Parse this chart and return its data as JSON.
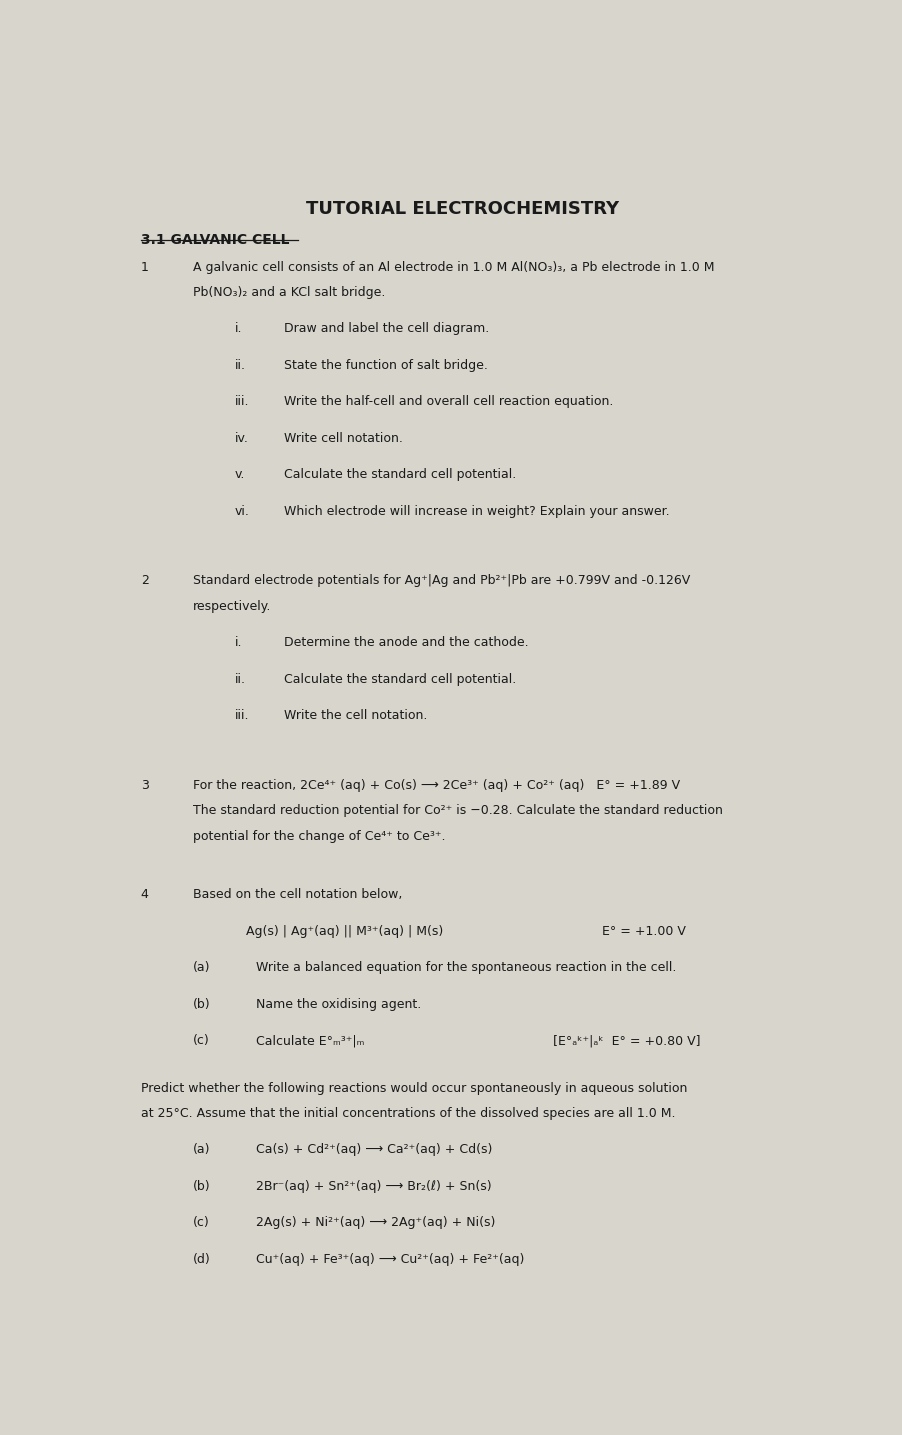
{
  "title": "TUTORIAL ELECTROCHEMISTRY",
  "subtitle": "3.1 GALVANIC CELL",
  "background_color": "#d8d5cc",
  "text_color": "#1a1a1a",
  "font_size_title": 13,
  "font_size_subtitle": 10,
  "font_size_body": 9,
  "sections": [
    {
      "number": "1",
      "intro_line1": "A galvanic cell consists of an Al electrode in 1.0 M Al(NO₃)₃, a Pb electrode in 1.0 M",
      "intro_line2": "Pb(NO₃)₂ and a KCl salt bridge.",
      "items": [
        {
          "label": "i.",
          "text": "Draw and label the cell diagram."
        },
        {
          "label": "ii.",
          "text": "State the function of salt bridge."
        },
        {
          "label": "iii.",
          "text": "Write the half-cell and overall cell reaction equation."
        },
        {
          "label": "iv.",
          "text": "Write cell notation."
        },
        {
          "label": "v.",
          "text": "Calculate the standard cell potential."
        },
        {
          "label": "vi.",
          "text": "Which electrode will increase in weight? Explain your answer."
        }
      ]
    },
    {
      "number": "2",
      "intro_line1": "Standard electrode potentials for Ag⁺|Ag and Pb²⁺|Pb are +0.799V and -0.126V",
      "intro_line2": "respectively.",
      "items": [
        {
          "label": "i.",
          "text": "Determine the anode and the cathode."
        },
        {
          "label": "ii.",
          "text": "Calculate the standard cell potential."
        },
        {
          "label": "iii.",
          "text": "Write the cell notation."
        }
      ]
    },
    {
      "number": "3",
      "intro_line1": "For the reaction, 2Ce⁴⁺ (aq) + Co(s) ⟶ 2Ce³⁺ (aq) + Co²⁺ (aq)   E° = +1.89 V",
      "intro_line2": "The standard reduction potential for Co²⁺ is −0.28. Calculate the standard reduction",
      "intro_line3": "potential for the change of Ce⁴⁺ to Ce³⁺.",
      "items": []
    },
    {
      "number": "4",
      "intro": "Based on the cell notation below,",
      "cell_notation": "Ag(s) | Ag⁺(aq) || M³⁺(aq) | M(s)",
      "cell_potential": "E° = +1.00 V",
      "items": [
        {
          "label": "(a)",
          "text": "Write a balanced equation for the spontaneous reaction in the cell."
        },
        {
          "label": "(b)",
          "text": "Name the oxidising agent."
        },
        {
          "label": "(c)",
          "text": "Calculate E°ₘ³⁺|ₘ",
          "hint": "[E°ₐᵏ⁺|ₐᵏ  E° = +0.80 V]"
        }
      ]
    }
  ],
  "predict_intro_line1": "Predict whether the following reactions would occur spontaneously in aqueous solution",
  "predict_intro_line2": "at 25°C. Assume that the initial concentrations of the dissolved species are all 1.0 M.",
  "predict_items": [
    {
      "label": "(a)",
      "text": "Ca(s) + Cd²⁺(aq) ⟶ Ca²⁺(aq) + Cd(s)"
    },
    {
      "label": "(b)",
      "text": "2Br⁻(aq) + Sn²⁺(aq) ⟶ Br₂(ℓ) + Sn(s)"
    },
    {
      "label": "(c)",
      "text": "2Ag(s) + Ni²⁺(aq) ⟶ 2Ag⁺(aq) + Ni(s)"
    },
    {
      "label": "(d)",
      "text": "Cu⁺(aq) + Fe³⁺(aq) ⟶ Cu²⁺(aq) + Fe²⁺(aq)"
    }
  ]
}
